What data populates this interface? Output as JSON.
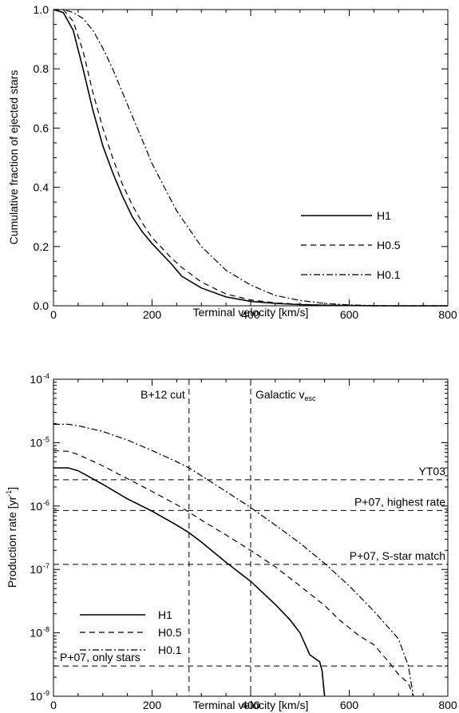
{
  "chart_data": [
    {
      "type": "line",
      "xlabel": "Terminal velocity [km/s]",
      "ylabel": "Cumulative fraction of ejected stars",
      "xlim": [
        0,
        800
      ],
      "ylim": [
        0,
        1
      ],
      "xticks": [
        0,
        200,
        400,
        600,
        800
      ],
      "xtick_labels": [
        "0",
        "200",
        "400",
        "600",
        "800"
      ],
      "yticks": [
        0,
        0.2,
        0.4,
        0.6,
        0.8,
        1.0
      ],
      "ytick_labels": [
        "0.0",
        "0.2",
        "0.4",
        "0.6",
        "0.8",
        "1.0"
      ],
      "legend_position": "lower-right",
      "series": [
        {
          "name": "H1",
          "style": "solid",
          "x": [
            0,
            20,
            40,
            60,
            80,
            100,
            120,
            140,
            160,
            180,
            200,
            240,
            260,
            300,
            350,
            400,
            450,
            500,
            550,
            600,
            650,
            700,
            750,
            800
          ],
          "y": [
            1.0,
            0.99,
            0.93,
            0.8,
            0.66,
            0.54,
            0.45,
            0.37,
            0.3,
            0.25,
            0.21,
            0.14,
            0.1,
            0.06,
            0.03,
            0.015,
            0.008,
            0.004,
            0.002,
            0.001,
            0.0,
            0.0,
            0.0,
            0.0
          ]
        },
        {
          "name": "H0.5",
          "style": "dashed",
          "x": [
            0,
            20,
            40,
            60,
            80,
            100,
            120,
            140,
            160,
            180,
            200,
            240,
            260,
            300,
            350,
            400,
            450,
            500,
            550,
            600,
            650,
            700,
            750,
            800
          ],
          "y": [
            1.0,
            1.0,
            0.96,
            0.86,
            0.72,
            0.6,
            0.5,
            0.41,
            0.34,
            0.28,
            0.23,
            0.16,
            0.13,
            0.08,
            0.04,
            0.02,
            0.01,
            0.005,
            0.002,
            0.001,
            0.0,
            0.0,
            0.0,
            0.0
          ]
        },
        {
          "name": "H0.1",
          "style": "dashdot",
          "x": [
            0,
            20,
            40,
            60,
            80,
            100,
            120,
            140,
            160,
            180,
            200,
            250,
            300,
            350,
            400,
            450,
            500,
            550,
            600,
            650,
            700,
            750,
            800
          ],
          "y": [
            1.0,
            1.0,
            0.99,
            0.97,
            0.93,
            0.87,
            0.8,
            0.72,
            0.64,
            0.56,
            0.48,
            0.32,
            0.2,
            0.12,
            0.07,
            0.035,
            0.018,
            0.008,
            0.003,
            0.001,
            0.0,
            0.0,
            0.0
          ]
        }
      ]
    },
    {
      "type": "line",
      "xlabel": "Terminal velocity [km/s]",
      "ylabel": "Production rate [yr",
      "ylabel_sup": "-1",
      "ylabel_end": "]",
      "yscale": "log",
      "xlim": [
        0,
        800
      ],
      "ylim": [
        1e-09,
        0.0001
      ],
      "xticks": [
        0,
        200,
        400,
        600,
        800
      ],
      "xtick_labels": [
        "0",
        "200",
        "400",
        "600",
        "800"
      ],
      "yticks": [
        1e-09,
        1e-08,
        1e-07,
        1e-06,
        1e-05,
        0.0001
      ],
      "ytick_base": "10",
      "ytick_exponents": [
        "-9",
        "-8",
        "-7",
        "-6",
        "-5",
        "-4"
      ],
      "legend_position": "lower-left",
      "series": [
        {
          "name": "H1",
          "style": "solid",
          "x": [
            0,
            30,
            50,
            100,
            150,
            200,
            250,
            275,
            300,
            350,
            400,
            450,
            480,
            500,
            520,
            540,
            545,
            550
          ],
          "y": [
            4e-06,
            4e-06,
            3.6e-06,
            2.2e-06,
            1.3e-06,
            8.3e-07,
            5e-07,
            3.8e-07,
            2.7e-07,
            1.3e-07,
            6.5e-08,
            2.8e-08,
            1.6e-08,
            1e-08,
            4.5e-09,
            3.5e-09,
            2.5e-09,
            1e-09
          ]
        },
        {
          "name": "H0.5",
          "style": "dashed",
          "x": [
            0,
            30,
            50,
            100,
            150,
            200,
            250,
            275,
            300,
            350,
            400,
            450,
            500,
            550,
            580,
            600,
            620,
            650,
            680,
            700,
            720,
            730
          ],
          "y": [
            7.5e-06,
            7.3e-06,
            6.5e-06,
            4.3e-06,
            2.7e-06,
            1.7e-06,
            1.05e-06,
            8e-07,
            6e-07,
            3.5e-07,
            2e-07,
            1.1e-07,
            5.5e-08,
            2.7e-08,
            1.6e-08,
            1.2e-08,
            9e-09,
            6.5e-09,
            3.5e-09,
            2.2e-09,
            1.6e-09,
            1e-09
          ]
        },
        {
          "name": "H0.1",
          "style": "dashdot",
          "x": [
            0,
            30,
            50,
            100,
            150,
            200,
            250,
            275,
            300,
            350,
            400,
            450,
            500,
            550,
            600,
            650,
            700,
            720,
            730
          ],
          "y": [
            1.95e-05,
            1.95e-05,
            1.85e-05,
            1.5e-05,
            1.1e-05,
            7.5e-06,
            5e-06,
            4e-06,
            3e-06,
            1.7e-06,
            9.5e-07,
            5e-07,
            2.6e-07,
            1.25e-07,
            5.5e-08,
            2.2e-08,
            8e-09,
            3e-09,
            1e-09
          ]
        }
      ],
      "reference_lines": [
        {
          "label": "B+12 cut",
          "axis": "x",
          "value": 275
        },
        {
          "label": "Galactic v",
          "label_sub": "esc",
          "axis": "x",
          "value": 400
        },
        {
          "label": "YT03",
          "axis": "y",
          "value": 2.6e-06
        },
        {
          "label": "P+07, highest rate",
          "axis": "y",
          "value": 8.5e-07
        },
        {
          "label": "P+07, S-star match",
          "axis": "y",
          "value": 1.2e-07
        },
        {
          "label": "P+07, only stars",
          "axis": "y",
          "value": 3e-09
        }
      ]
    }
  ]
}
